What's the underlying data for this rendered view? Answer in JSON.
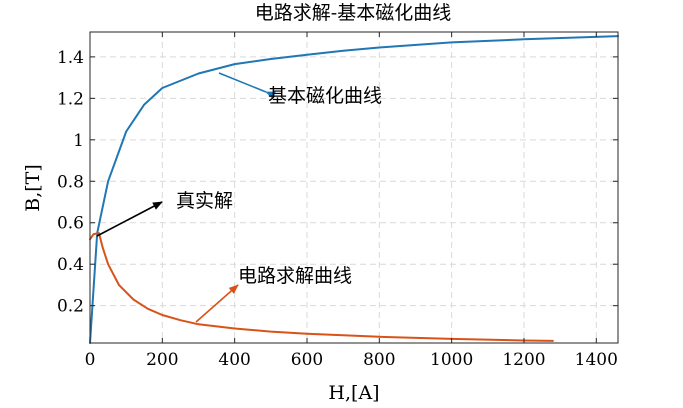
{
  "chart_data": {
    "type": "line",
    "title": "电路求解-基本磁化曲线",
    "xlabel": "H,[A]",
    "ylabel": "B,[T]",
    "xlim": [
      0,
      1460
    ],
    "ylim": [
      0.02,
      1.52
    ],
    "grid": true,
    "x_ticks": [
      0,
      200,
      400,
      600,
      800,
      1000,
      1200,
      1400
    ],
    "y_ticks": [
      0.2,
      0.4,
      0.6,
      0.8,
      1,
      1.2,
      1.4
    ],
    "x_tick_labels": [
      "0",
      "200",
      "400",
      "600",
      "800",
      "1000",
      "1200",
      "1400"
    ],
    "y_tick_labels": [
      "0.2",
      "0.4",
      "0.6",
      "0.8",
      "1",
      "1.2",
      "1.4"
    ],
    "series": [
      {
        "name": "基本磁化曲线",
        "color": "#1f77b4",
        "x": [
          0,
          20,
          50,
          100,
          150,
          200,
          300,
          400,
          500,
          600,
          700,
          800,
          1000,
          1200,
          1460
        ],
        "y": [
          0.02,
          0.55,
          0.8,
          1.04,
          1.17,
          1.25,
          1.32,
          1.365,
          1.39,
          1.41,
          1.43,
          1.445,
          1.47,
          1.485,
          1.5
        ]
      },
      {
        "name": "电路求解曲线",
        "color": "#d95319",
        "x": [
          0,
          10,
          25,
          35,
          50,
          80,
          120,
          160,
          200,
          250,
          300,
          400,
          500,
          600,
          800,
          1000,
          1200,
          1280
        ],
        "y": [
          0.52,
          0.545,
          0.55,
          0.48,
          0.4,
          0.3,
          0.23,
          0.185,
          0.155,
          0.13,
          0.11,
          0.09,
          0.075,
          0.065,
          0.05,
          0.04,
          0.032,
          0.03
        ]
      }
    ],
    "annotations": [
      {
        "label": "基本磁化曲线",
        "arrow_to": [
          356,
          1.35
        ],
        "color": "#1f77b4"
      },
      {
        "label": "真实解",
        "arrow_to": [
          22,
          0.55
        ],
        "color": "#000000"
      },
      {
        "label": "电路求解曲线",
        "arrow_to": [
          300,
          0.11
        ],
        "color": "#d95319"
      }
    ]
  }
}
